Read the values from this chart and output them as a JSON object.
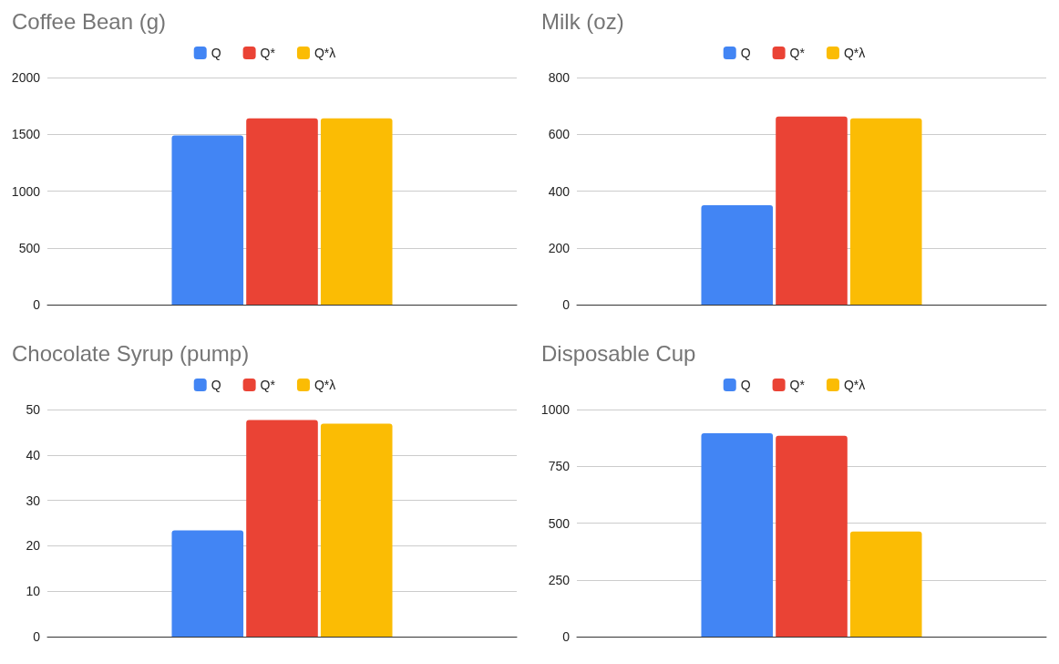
{
  "chart_data": [
    {
      "type": "bar",
      "title": "Coffee Bean (g)",
      "categories": [
        null
      ],
      "legend": "top",
      "grid": "y",
      "ylim": [
        0,
        2000
      ],
      "yticks": [
        0,
        500,
        1000,
        1500,
        2000
      ],
      "series": [
        {
          "name": "Q",
          "color": "#4285f4",
          "values": [
            1490
          ]
        },
        {
          "name": "Q*",
          "color": "#ea4335",
          "values": [
            1640
          ]
        },
        {
          "name": "Q*λ",
          "color": "#fbbc04",
          "values": [
            1640
          ]
        }
      ]
    },
    {
      "type": "bar",
      "title": "Milk (oz)",
      "categories": [
        null
      ],
      "legend": "top",
      "grid": "y",
      "ylim": [
        0,
        800
      ],
      "yticks": [
        0,
        200,
        400,
        600,
        800
      ],
      "series": [
        {
          "name": "Q",
          "color": "#4285f4",
          "values": [
            350
          ]
        },
        {
          "name": "Q*",
          "color": "#ea4335",
          "values": [
            663
          ]
        },
        {
          "name": "Q*λ",
          "color": "#fbbc04",
          "values": [
            656
          ]
        }
      ]
    },
    {
      "type": "bar",
      "title": "Chocolate Syrup (pump)",
      "categories": [
        null
      ],
      "legend": "top",
      "grid": "y",
      "ylim": [
        0,
        50
      ],
      "yticks": [
        0,
        10,
        20,
        30,
        40,
        50
      ],
      "series": [
        {
          "name": "Q",
          "color": "#4285f4",
          "values": [
            23.4
          ]
        },
        {
          "name": "Q*",
          "color": "#ea4335",
          "values": [
            47.7
          ]
        },
        {
          "name": "Q*λ",
          "color": "#fbbc04",
          "values": [
            46.9
          ]
        }
      ]
    },
    {
      "type": "bar",
      "title": "Disposable Cup",
      "categories": [
        null
      ],
      "legend": "top",
      "grid": "y",
      "ylim": [
        0,
        1000
      ],
      "yticks": [
        0,
        250,
        500,
        750,
        1000
      ],
      "series": [
        {
          "name": "Q",
          "color": "#4285f4",
          "values": [
            896
          ]
        },
        {
          "name": "Q*",
          "color": "#ea4335",
          "values": [
            885
          ]
        },
        {
          "name": "Q*λ",
          "color": "#fbbc04",
          "values": [
            463
          ]
        }
      ]
    }
  ]
}
